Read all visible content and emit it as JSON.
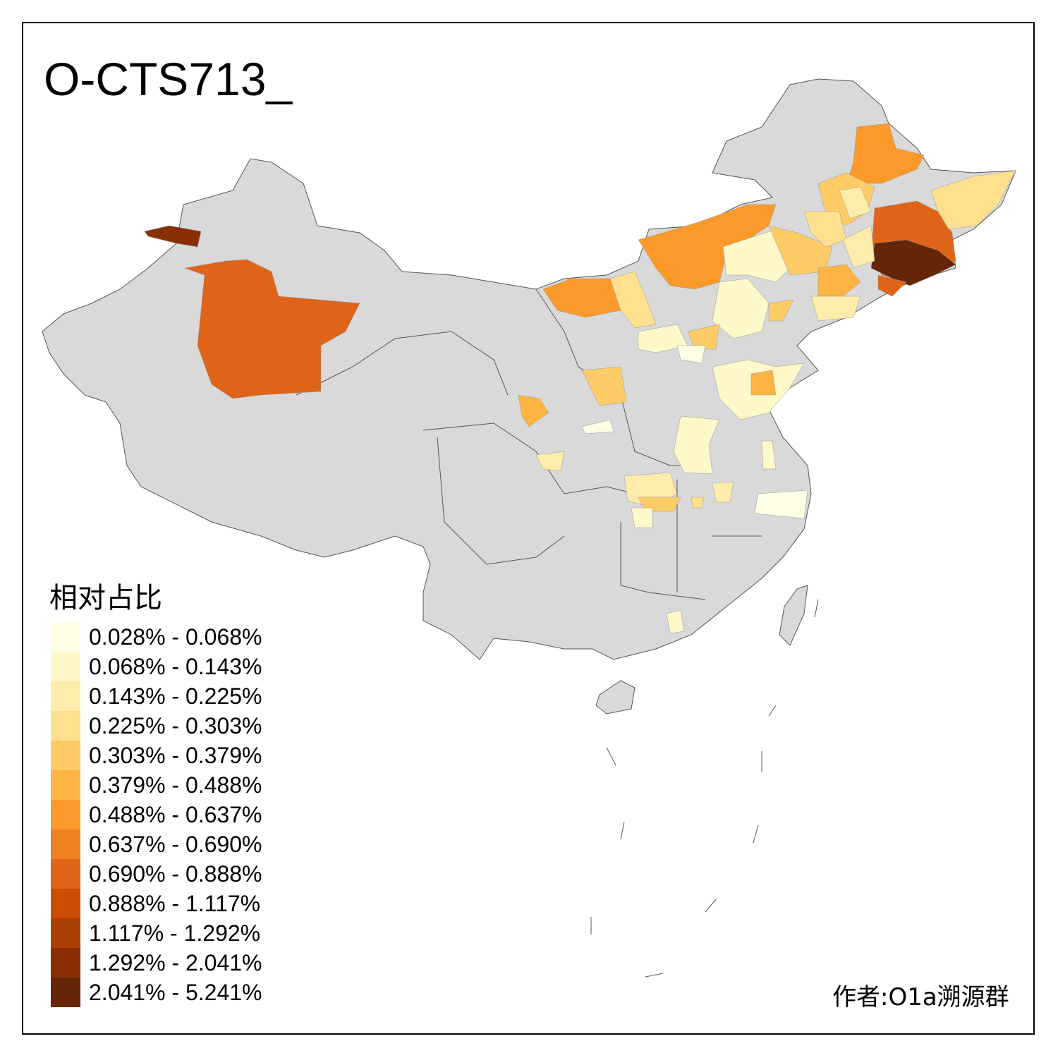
{
  "title": "O-CTS713_",
  "legend": {
    "title": "相对占比",
    "items": [
      {
        "label": "0.028% - 0.068%",
        "color": "#FFFFE5"
      },
      {
        "label": "0.068% - 0.143%",
        "color": "#FFF8C8"
      },
      {
        "label": "0.143% - 0.225%",
        "color": "#FEECAA"
      },
      {
        "label": "0.225% - 0.303%",
        "color": "#FEE08E"
      },
      {
        "label": "0.303% - 0.379%",
        "color": "#FECC66"
      },
      {
        "label": "0.379% - 0.488%",
        "color": "#FEB443"
      },
      {
        "label": "0.488% - 0.637%",
        "color": "#FB9A2A"
      },
      {
        "label": "0.637% - 0.690%",
        "color": "#F08020"
      },
      {
        "label": "0.690% - 0.888%",
        "color": "#E06418"
      },
      {
        "label": "0.888% - 1.117%",
        "color": "#CC4C02"
      },
      {
        "label": "1.117% - 1.292%",
        "color": "#AA3E04"
      },
      {
        "label": "1.292% - 2.041%",
        "color": "#8A2E04"
      },
      {
        "label": "2.041% - 5.241%",
        "color": "#662506"
      }
    ]
  },
  "map": {
    "base_color": "#D9D9D9",
    "border_color": "#555555"
  },
  "author": "作者:O1a溯源群"
}
